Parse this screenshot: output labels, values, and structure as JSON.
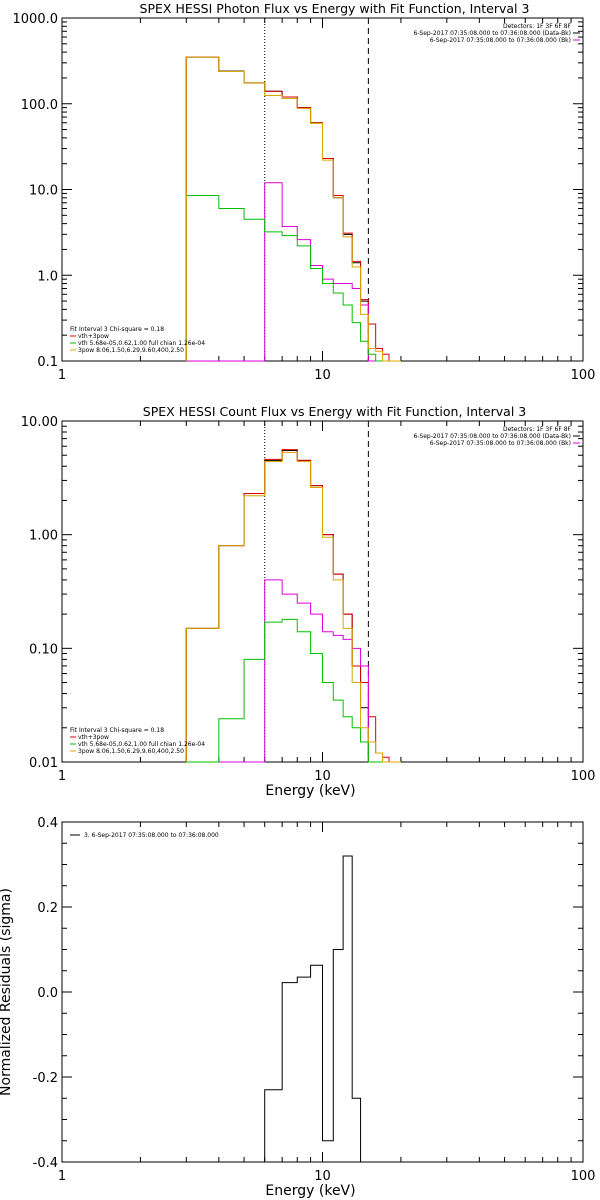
{
  "chart_data": [
    {
      "type": "line",
      "title": "SPEX HESSI Photon Flux vs Energy with Fit Function, Interval 3",
      "xlabel": "",
      "ylabel": "",
      "xscale": "log",
      "yscale": "log",
      "xlim": [
        1,
        100
      ],
      "ylim": [
        0.1,
        1000
      ],
      "x_tick_labels": [
        "1",
        "10",
        "100"
      ],
      "y_tick_labels": [
        "0.1",
        "1.0",
        "10.0",
        "100.0",
        "1000.0"
      ],
      "y_tick_values": [
        0.1,
        1,
        10,
        100,
        1000
      ],
      "dotted_vline": 6,
      "dashed_vline": 15,
      "legend_top_right": [
        {
          "text": "Detectors: 1F 3F 6F 8F",
          "color": "#000000"
        },
        {
          "text": "6-Sep-2017 07:35:08.000 to 07:36:08.000 (Data-Bk)",
          "color": "#000000"
        },
        {
          "text": "6-Sep-2017 07:35:08.000 to 07:36:08.000 (Bk)",
          "color": "#dd00dd"
        }
      ],
      "legend_bottom_left": [
        {
          "text": "Fit Interval 3   Chi-square = 0.18",
          "color": "#000000"
        },
        {
          "text": "vth+3pow",
          "color": "#dd0000"
        },
        {
          "text": "vth 5.68e-05,0.62,1.00   full chian 1.26e-04",
          "color": "#00c000"
        },
        {
          "text": "3pow 8.06,1.50,6.29,9.60,400,2.50",
          "color": "#d8a800"
        }
      ],
      "energy_edges": [
        3,
        4,
        5,
        6,
        7,
        8,
        9,
        10,
        11,
        12,
        13,
        14,
        15,
        16,
        17,
        18,
        20
      ],
      "series": [
        {
          "color": "#000000",
          "values": [
            350,
            240,
            175,
            140,
            120,
            90,
            60,
            23,
            8,
            3,
            1.4,
            0.5,
            0.1,
            0.1,
            0.1,
            0.1
          ]
        },
        {
          "color": "#dd0000",
          "values": [
            350,
            238,
            175,
            140,
            120,
            90,
            60,
            23,
            8.5,
            3.1,
            1.45,
            0.52,
            0.27,
            0.14,
            0.12,
            0.1
          ]
        },
        {
          "color": "#dd00dd",
          "values": [
            0.1,
            0.1,
            0.1,
            12,
            3.7,
            2.6,
            1.3,
            0.9,
            0.8,
            0.8,
            0.7,
            0.45,
            0.1,
            0.1,
            0.1,
            0.1
          ]
        },
        {
          "color": "#00c000",
          "values": [
            8.5,
            6,
            4.5,
            3.2,
            2.9,
            2.2,
            1.2,
            0.8,
            0.62,
            0.45,
            0.28,
            0.17,
            0.12,
            0.1,
            0.1,
            0.1
          ]
        },
        {
          "color": "#d8a800",
          "values": [
            350,
            238,
            175,
            125,
            115,
            88,
            59,
            22,
            8,
            2.8,
            1.25,
            0.35,
            0.14,
            0.13,
            0.1,
            0.1
          ]
        }
      ]
    },
    {
      "type": "line",
      "title": "SPEX HESSI Count Flux vs Energy with Fit Function, Interval 3",
      "xlabel": "Energy (keV)",
      "ylabel": "",
      "xscale": "log",
      "yscale": "log",
      "xlim": [
        1,
        100
      ],
      "ylim": [
        0.01,
        10
      ],
      "x_tick_labels": [
        "1",
        "10",
        "100"
      ],
      "y_tick_labels": [
        "0.01",
        "0.10",
        "1.00",
        "10.00"
      ],
      "y_tick_values": [
        0.01,
        0.1,
        1,
        10
      ],
      "dotted_vline": 6,
      "dashed_vline": 15,
      "legend_top_right": [
        {
          "text": "Detectors: 1F 3F 6F 8F",
          "color": "#000000"
        },
        {
          "text": "6-Sep-2017 07:35:08.000 to 07:36:08.000 (Data-Bk)",
          "color": "#000000"
        },
        {
          "text": "6-Sep-2017 07:35:08.000 to 07:36:08.000 (Bk)",
          "color": "#dd00dd"
        }
      ],
      "legend_bottom_left": [
        {
          "text": "Fit Interval 3   Chi-square = 0.18",
          "color": "#000000"
        },
        {
          "text": "vth+3pow",
          "color": "#dd0000"
        },
        {
          "text": "vth 5.68e-05,0.62,1.00   full chian 1.26e-04",
          "color": "#00c000"
        },
        {
          "text": "3pow 8.06,1.50,6.29,9.60,400,2.50",
          "color": "#d8a800"
        }
      ],
      "energy_edges": [
        3,
        4,
        5,
        6,
        7,
        8,
        9,
        10,
        11,
        12,
        13,
        14,
        15,
        16,
        17,
        18,
        20
      ],
      "series": [
        {
          "color": "#000000",
          "values": [
            0.15,
            0.8,
            2.3,
            4.5,
            5.5,
            4.5,
            2.7,
            1.0,
            0.45,
            0.2,
            0.07,
            0.03,
            0.01,
            0.01,
            0.01,
            0.01
          ]
        },
        {
          "color": "#dd0000",
          "values": [
            0.15,
            0.8,
            2.3,
            4.6,
            5.6,
            4.5,
            2.7,
            1.0,
            0.45,
            0.2,
            0.07,
            0.05,
            0.025,
            0.012,
            0.011,
            0.01
          ]
        },
        {
          "color": "#dd00dd",
          "values": [
            0.01,
            0.01,
            0.01,
            0.4,
            0.3,
            0.25,
            0.2,
            0.14,
            0.13,
            0.12,
            0.1,
            0.07,
            0.01,
            0.01,
            0.01,
            0.01
          ]
        },
        {
          "color": "#00c000",
          "values": [
            0.01,
            0.024,
            0.08,
            0.17,
            0.18,
            0.14,
            0.09,
            0.05,
            0.035,
            0.025,
            0.02,
            0.015,
            0.01,
            0.01,
            0.01,
            0.01
          ]
        },
        {
          "color": "#d8a800",
          "values": [
            0.15,
            0.8,
            2.2,
            4.4,
            5.3,
            4.4,
            2.6,
            0.95,
            0.4,
            0.15,
            0.05,
            0.02,
            0.015,
            0.012,
            0.01,
            0.01
          ]
        }
      ]
    },
    {
      "type": "line",
      "title": "",
      "xlabel": "Energy (keV)",
      "ylabel": "Normalized Residuals (sigma)",
      "xscale": "log",
      "yscale": "linear",
      "xlim": [
        1,
        100
      ],
      "ylim": [
        -0.4,
        0.4
      ],
      "x_tick_labels": [
        "1",
        "10",
        "100"
      ],
      "y_tick_labels": [
        "-0.4",
        "-0.2",
        "0.0",
        "0.2",
        "0.4"
      ],
      "y_tick_values": [
        -0.4,
        -0.2,
        0.0,
        0.2,
        0.4
      ],
      "legend_top_left": "3. 6-Sep-2017 07:35:08.000 to 07:36:08.000",
      "energy_edges": [
        6,
        7,
        8,
        9,
        10,
        11,
        12,
        13,
        14,
        15
      ],
      "series": [
        {
          "color": "#000000",
          "values": [
            -0.23,
            0.022,
            0.035,
            0.063,
            -0.35,
            0.1,
            0.32,
            -0.25,
            -0.4
          ]
        }
      ]
    }
  ]
}
